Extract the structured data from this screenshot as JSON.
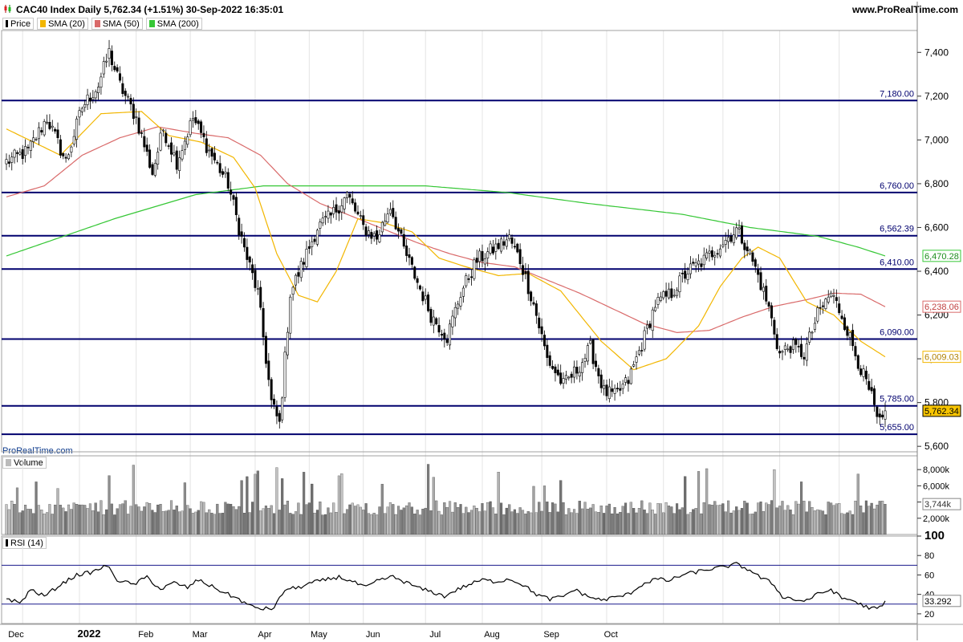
{
  "header": {
    "title": "CAC40 Index Daily 5,762.34 (+1.51%) 30-Sep-2022 16:35:01",
    "site": "www.ProRealTime.com",
    "watermark": "ProRealTime.com"
  },
  "legend": {
    "price": "Price",
    "sma20": "SMA (20)",
    "sma50": "SMA (50)",
    "sma200": "SMA (200)",
    "volume": "Volume",
    "rsi": "RSI (14)"
  },
  "colors": {
    "price_up": "#ffffff",
    "price_down": "#000000",
    "sma20": "#f2b600",
    "sma50": "#d96a6a",
    "sma200": "#36c736",
    "levels": "#00006e",
    "rsi": "#000000"
  },
  "chart_data": [
    {
      "type": "candlestick",
      "title": "CAC40 Index Daily",
      "y_ticks": [
        "5,600",
        "5,800",
        "6,000",
        "6,200",
        "6,400",
        "6,600",
        "6,800",
        "7,000",
        "7,200",
        "7,400"
      ],
      "ylim": [
        5575,
        7500
      ],
      "x_labels": [
        "Dec",
        "2022",
        "Feb",
        "Mar",
        "Apr",
        "May",
        "Jun",
        "Jul",
        "Aug",
        "Sep",
        "Oct"
      ],
      "horizontal_levels": [
        {
          "value": 7180,
          "label": "7,180.00"
        },
        {
          "value": 6760,
          "label": "6,760.00"
        },
        {
          "value": 6562.39,
          "label": "6,562.39"
        },
        {
          "value": 6410,
          "label": "6,410.00"
        },
        {
          "value": 6090,
          "label": "6,090.00"
        },
        {
          "value": 5785,
          "label": "5,785.00"
        },
        {
          "value": 5655,
          "label": "5,655.00"
        }
      ],
      "last_values": {
        "sma200": {
          "value": 6470.28,
          "label": "6,470.28"
        },
        "sma50": {
          "value": 6238.06,
          "label": "6,238.06"
        },
        "sma20": {
          "value": 6009.03,
          "label": "6,009.03"
        },
        "price": {
          "value": 5762.34,
          "label": "5,762.34"
        }
      },
      "close_anchors": [
        [
          0,
          6900
        ],
        [
          8,
          6950
        ],
        [
          15,
          7100
        ],
        [
          22,
          6900
        ],
        [
          28,
          7150
        ],
        [
          34,
          7250
        ],
        [
          38,
          7400
        ],
        [
          42,
          7250
        ],
        [
          48,
          7100
        ],
        [
          54,
          6850
        ],
        [
          58,
          7050
        ],
        [
          63,
          6900
        ],
        [
          69,
          7100
        ],
        [
          75,
          6950
        ],
        [
          82,
          6800
        ],
        [
          88,
          6500
        ],
        [
          93,
          6300
        ],
        [
          98,
          5800
        ],
        [
          101,
          5700
        ],
        [
          105,
          6300
        ],
        [
          110,
          6450
        ],
        [
          115,
          6600
        ],
        [
          120,
          6650
        ],
        [
          126,
          6750
        ],
        [
          132,
          6600
        ],
        [
          137,
          6550
        ],
        [
          142,
          6700
        ],
        [
          147,
          6500
        ],
        [
          152,
          6350
        ],
        [
          157,
          6200
        ],
        [
          163,
          6100
        ],
        [
          168,
          6300
        ],
        [
          174,
          6450
        ],
        [
          180,
          6500
        ],
        [
          186,
          6550
        ],
        [
          190,
          6450
        ],
        [
          195,
          6250
        ],
        [
          200,
          6000
        ],
        [
          206,
          5880
        ],
        [
          211,
          5950
        ],
        [
          216,
          6050
        ],
        [
          221,
          5850
        ],
        [
          225,
          5830
        ],
        [
          230,
          5900
        ],
        [
          236,
          6100
        ],
        [
          240,
          6250
        ],
        [
          246,
          6300
        ],
        [
          252,
          6400
        ],
        [
          258,
          6450
        ],
        [
          264,
          6520
        ],
        [
          270,
          6590
        ],
        [
          274,
          6510
        ],
        [
          278,
          6380
        ],
        [
          282,
          6230
        ],
        [
          286,
          6020
        ],
        [
          290,
          6060
        ],
        [
          295,
          6020
        ],
        [
          300,
          6200
        ],
        [
          305,
          6300
        ],
        [
          309,
          6200
        ],
        [
          313,
          6060
        ],
        [
          317,
          5920
        ],
        [
          320,
          5820
        ],
        [
          322,
          5720
        ],
        [
          324,
          5700
        ],
        [
          325,
          5762
        ]
      ],
      "sma20_anchors": [
        [
          0,
          7050
        ],
        [
          20,
          6930
        ],
        [
          35,
          7120
        ],
        [
          50,
          7130
        ],
        [
          60,
          7020
        ],
        [
          72,
          6990
        ],
        [
          84,
          6920
        ],
        [
          92,
          6780
        ],
        [
          100,
          6480
        ],
        [
          108,
          6290
        ],
        [
          115,
          6260
        ],
        [
          122,
          6400
        ],
        [
          130,
          6640
        ],
        [
          140,
          6620
        ],
        [
          150,
          6580
        ],
        [
          160,
          6460
        ],
        [
          170,
          6420
        ],
        [
          182,
          6380
        ],
        [
          193,
          6390
        ],
        [
          205,
          6310
        ],
        [
          220,
          6080
        ],
        [
          232,
          5950
        ],
        [
          244,
          6000
        ],
        [
          256,
          6150
        ],
        [
          264,
          6330
        ],
        [
          272,
          6460
        ],
        [
          278,
          6510
        ],
        [
          286,
          6460
        ],
        [
          296,
          6260
        ],
        [
          306,
          6200
        ],
        [
          316,
          6080
        ],
        [
          325,
          6009
        ]
      ],
      "sma50_anchors": [
        [
          0,
          6740
        ],
        [
          14,
          6790
        ],
        [
          28,
          6930
        ],
        [
          42,
          7010
        ],
        [
          56,
          7060
        ],
        [
          70,
          7030
        ],
        [
          82,
          7010
        ],
        [
          94,
          6930
        ],
        [
          104,
          6800
        ],
        [
          116,
          6710
        ],
        [
          128,
          6650
        ],
        [
          140,
          6590
        ],
        [
          152,
          6530
        ],
        [
          164,
          6480
        ],
        [
          176,
          6440
        ],
        [
          188,
          6420
        ],
        [
          200,
          6360
        ],
        [
          212,
          6300
        ],
        [
          224,
          6230
        ],
        [
          236,
          6160
        ],
        [
          248,
          6120
        ],
        [
          260,
          6130
        ],
        [
          272,
          6190
        ],
        [
          284,
          6240
        ],
        [
          296,
          6270
        ],
        [
          306,
          6300
        ],
        [
          316,
          6295
        ],
        [
          325,
          6238
        ]
      ],
      "sma200_anchors": [
        [
          0,
          6470
        ],
        [
          40,
          6640
        ],
        [
          70,
          6750
        ],
        [
          95,
          6790
        ],
        [
          120,
          6790
        ],
        [
          155,
          6790
        ],
        [
          185,
          6760
        ],
        [
          215,
          6710
        ],
        [
          250,
          6660
        ],
        [
          275,
          6600
        ],
        [
          300,
          6560
        ],
        [
          315,
          6510
        ],
        [
          325,
          6470
        ]
      ]
    },
    {
      "type": "bar",
      "title": "Volume",
      "y_ticks": [
        "2,000k",
        "4,000k",
        "6,000k",
        "8,000k"
      ],
      "ylim": [
        0,
        9500
      ],
      "last_value": {
        "value": 3744,
        "label": "3,744k"
      },
      "base_level": 3300
    },
    {
      "type": "line",
      "title": "RSI (14)",
      "y_ticks": [
        "20",
        "40",
        "60",
        "80",
        "100"
      ],
      "ylim": [
        10,
        100
      ],
      "levels": [
        70,
        30
      ],
      "last_value": {
        "value": 33.292,
        "label": "33.292"
      },
      "rsi_anchors": [
        [
          0,
          36
        ],
        [
          5,
          31
        ],
        [
          9,
          45
        ],
        [
          14,
          38
        ],
        [
          20,
          50
        ],
        [
          26,
          60
        ],
        [
          32,
          63
        ],
        [
          37,
          70
        ],
        [
          41,
          55
        ],
        [
          47,
          50
        ],
        [
          52,
          58
        ],
        [
          57,
          45
        ],
        [
          62,
          52
        ],
        [
          67,
          47
        ],
        [
          71,
          55
        ],
        [
          76,
          48
        ],
        [
          82,
          40
        ],
        [
          86,
          35
        ],
        [
          90,
          28
        ],
        [
          95,
          25
        ],
        [
          99,
          26
        ],
        [
          103,
          45
        ],
        [
          108,
          47
        ],
        [
          113,
          52
        ],
        [
          118,
          55
        ],
        [
          123,
          58
        ],
        [
          128,
          53
        ],
        [
          133,
          47
        ],
        [
          138,
          55
        ],
        [
          143,
          58
        ],
        [
          148,
          52
        ],
        [
          153,
          46
        ],
        [
          158,
          42
        ],
        [
          162,
          38
        ],
        [
          166,
          44
        ],
        [
          171,
          50
        ],
        [
          176,
          55
        ],
        [
          181,
          53
        ],
        [
          186,
          56
        ],
        [
          191,
          50
        ],
        [
          196,
          40
        ],
        [
          201,
          35
        ],
        [
          206,
          38
        ],
        [
          210,
          45
        ],
        [
          215,
          38
        ],
        [
          220,
          34
        ],
        [
          225,
          37
        ],
        [
          230,
          40
        ],
        [
          235,
          50
        ],
        [
          240,
          56
        ],
        [
          245,
          54
        ],
        [
          250,
          60
        ],
        [
          255,
          63
        ],
        [
          260,
          66
        ],
        [
          265,
          68
        ],
        [
          270,
          71
        ],
        [
          275,
          65
        ],
        [
          279,
          57
        ],
        [
          283,
          52
        ],
        [
          287,
          38
        ],
        [
          291,
          35
        ],
        [
          295,
          33
        ],
        [
          300,
          40
        ],
        [
          305,
          45
        ],
        [
          309,
          36
        ],
        [
          313,
          34
        ],
        [
          317,
          28
        ],
        [
          320,
          26
        ],
        [
          322,
          25
        ],
        [
          324,
          28
        ],
        [
          325,
          33
        ]
      ]
    }
  ]
}
